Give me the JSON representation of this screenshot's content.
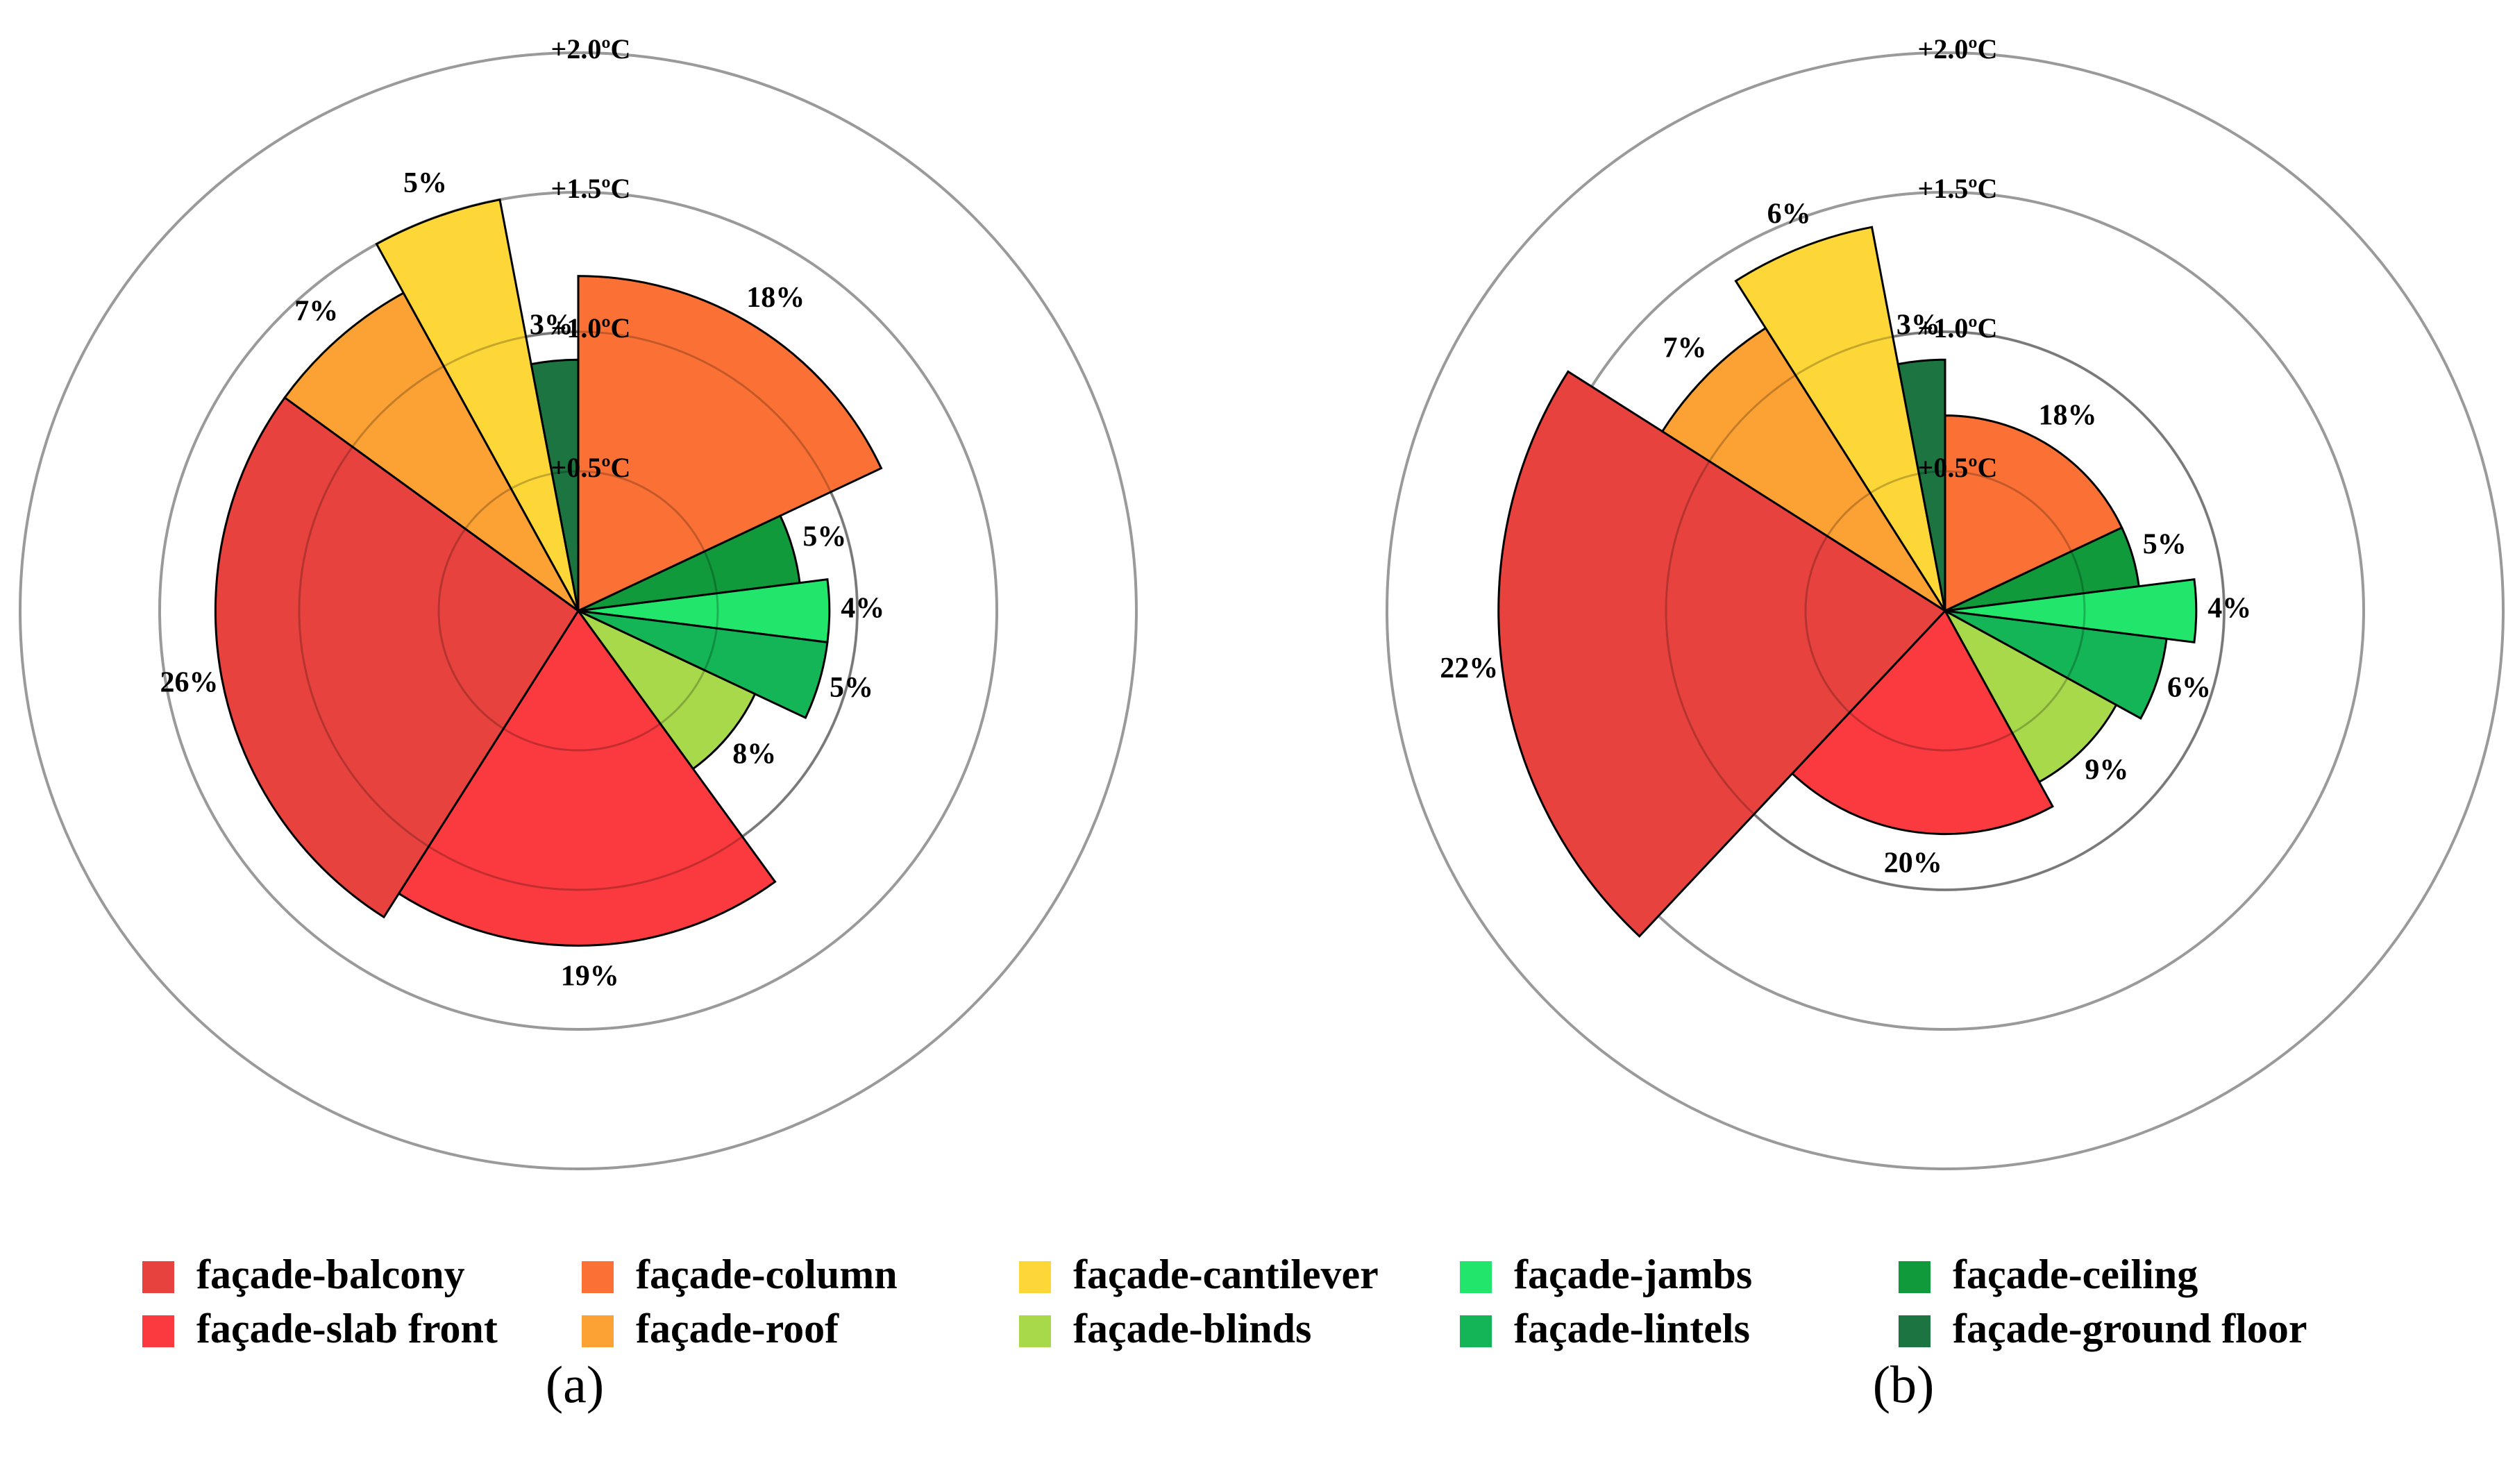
{
  "figure": {
    "legend_items": [
      {
        "name": "façade-balcony",
        "color": "#e8423e"
      },
      {
        "name": "façade-slab front",
        "color": "#fa3a3e"
      },
      {
        "name": "façade-column",
        "color": "#fb7135"
      },
      {
        "name": "façade-roof",
        "color": "#fca133"
      },
      {
        "name": "façade-cantilever",
        "color": "#fdd738"
      },
      {
        "name": "façade-blinds",
        "color": "#a7d94b"
      },
      {
        "name": "façade-jambs",
        "color": "#22e66b"
      },
      {
        "name": "façade-lintels",
        "color": "#13b557"
      },
      {
        "name": "façade-ceiling",
        "color": "#109a3c"
      },
      {
        "name": "façade-ground floor",
        "color": "#1c7540"
      }
    ]
  },
  "chart_data": [
    {
      "type": "polar-bar",
      "panel_label": "(a)",
      "radial_unit": "°C",
      "rings": [
        {
          "value": 0.5,
          "label": "+0.5ºC"
        },
        {
          "value": 1.0,
          "label": "+1.0ºC"
        },
        {
          "value": 1.5,
          "label": "+1.5ºC"
        },
        {
          "value": 2.0,
          "label": "+2.0ºC"
        }
      ],
      "slices": [
        {
          "category": "façade-column",
          "share_pct": 18,
          "label": "18%",
          "temp": 1.2
        },
        {
          "category": "façade-ceiling",
          "share_pct": 5,
          "label": "5%",
          "temp": 0.8
        },
        {
          "category": "façade-jambs",
          "share_pct": 4,
          "label": "4%",
          "temp": 0.9
        },
        {
          "category": "façade-lintels",
          "share_pct": 5,
          "label": "5%",
          "temp": 0.9
        },
        {
          "category": "façade-blinds",
          "share_pct": 8,
          "label": "8%",
          "temp": 0.7
        },
        {
          "category": "façade-slab front",
          "share_pct": 19,
          "label": "19%",
          "temp": 1.2
        },
        {
          "category": "façade-balcony",
          "share_pct": 26,
          "label": "26%",
          "temp": 1.3
        },
        {
          "category": "façade-roof",
          "share_pct": 7,
          "label": "7%",
          "temp": 1.3
        },
        {
          "category": "façade-cantilever",
          "share_pct": 5,
          "label": "5%",
          "temp": 1.5
        },
        {
          "category": "façade-ground floor",
          "share_pct": 3,
          "label": "3%",
          "temp": 0.9
        }
      ]
    },
    {
      "type": "polar-bar",
      "panel_label": "(b)",
      "radial_unit": "°C",
      "rings": [
        {
          "value": 0.5,
          "label": "+0.5ºC"
        },
        {
          "value": 1.0,
          "label": "+1.0ºC"
        },
        {
          "value": 1.5,
          "label": "+1.5ºC"
        },
        {
          "value": 2.0,
          "label": "+2.0ºC"
        }
      ],
      "slices": [
        {
          "category": "façade-column",
          "share_pct": 18,
          "label": "18%",
          "temp": 0.7
        },
        {
          "category": "façade-ceiling",
          "share_pct": 5,
          "label": "5%",
          "temp": 0.7
        },
        {
          "category": "façade-jambs",
          "share_pct": 4,
          "label": "4%",
          "temp": 0.9
        },
        {
          "category": "façade-lintels",
          "share_pct": 6,
          "label": "6%",
          "temp": 0.8
        },
        {
          "category": "façade-blinds",
          "share_pct": 9,
          "label": "9%",
          "temp": 0.7
        },
        {
          "category": "façade-slab front",
          "share_pct": 20,
          "label": "20%",
          "temp": 0.8
        },
        {
          "category": "façade-balcony",
          "share_pct": 22,
          "label": "22%",
          "temp": 1.6
        },
        {
          "category": "façade-roof",
          "share_pct": 7,
          "label": "7%",
          "temp": 1.2
        },
        {
          "category": "façade-cantilever",
          "share_pct": 6,
          "label": "6%",
          "temp": 1.4
        },
        {
          "category": "façade-ground floor",
          "share_pct": 3,
          "label": "3%",
          "temp": 0.9
        }
      ]
    }
  ]
}
